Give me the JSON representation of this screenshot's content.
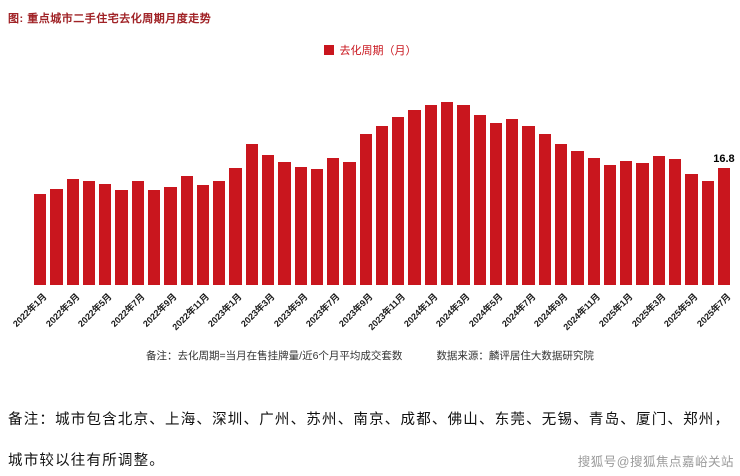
{
  "title": "图: 重点城市二手住宅去化周期月度走势",
  "legend": {
    "label": "去化周期（月）",
    "color": "#c9161e"
  },
  "footnotes": {
    "definition": "备注：去化周期=当月在售挂牌量/近6个月平均成交套数",
    "source": "数据来源：麟评居住大数据研究院"
  },
  "bottom_note": {
    "line1": "备注：城市包含北京、上海、深圳、广州、苏州、南京、成都、佛山、东莞、无锡、青岛、厦门、郑州，",
    "line2": "城市较以往有所调整。"
  },
  "watermark": "搜狐号@搜狐焦点嘉峪关站",
  "chart_data": {
    "type": "bar",
    "title": "重点城市二手住宅去化周期月度走势",
    "ylabel": "去化周期（月）",
    "xlabel": "",
    "ylim": [
      0,
      28
    ],
    "grid": false,
    "legend_position": "top",
    "bar_color": "#c9161e",
    "x_tick_every": 2,
    "categories": [
      "2022年1月",
      "2022年2月",
      "2022年3月",
      "2022年4月",
      "2022年5月",
      "2022年6月",
      "2022年7月",
      "2022年8月",
      "2022年9月",
      "2022年10月",
      "2022年11月",
      "2022年12月",
      "2023年1月",
      "2023年2月",
      "2023年3月",
      "2023年4月",
      "2023年5月",
      "2023年6月",
      "2023年7月",
      "2023年8月",
      "2023年9月",
      "2023年10月",
      "2023年11月",
      "2023年12月",
      "2024年1月",
      "2024年2月",
      "2024年3月",
      "2024年4月",
      "2024年5月",
      "2024年6月",
      "2024年7月",
      "2024年8月",
      "2024年9月",
      "2024年10月",
      "2024年11月",
      "2024年12月",
      "2025年1月",
      "2025年2月",
      "2025年3月",
      "2025年4月",
      "2025年5月",
      "2025年6月",
      "2025年7月"
    ],
    "values": [
      13.1,
      13.8,
      15.2,
      14.9,
      14.5,
      13.7,
      14.9,
      13.7,
      14.1,
      15.6,
      14.3,
      15.0,
      16.8,
      20.3,
      18.6,
      17.7,
      17.0,
      16.6,
      18.3,
      17.7,
      21.7,
      22.8,
      24.1,
      25.2,
      25.8,
      26.3,
      25.9,
      24.4,
      23.2,
      23.9,
      22.9,
      21.7,
      20.3,
      19.2,
      18.2,
      17.2,
      17.8,
      17.5,
      18.5,
      18.1,
      15.9,
      15.0,
      16.8
    ],
    "data_labels": [
      {
        "index": 42,
        "text": "16.8"
      }
    ]
  }
}
